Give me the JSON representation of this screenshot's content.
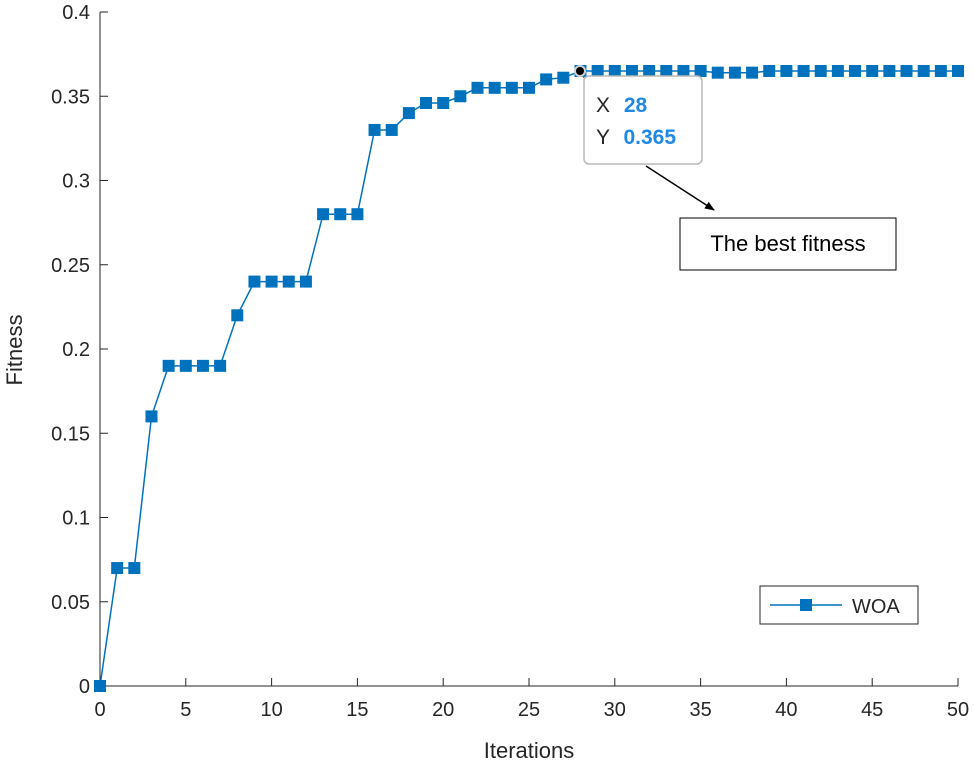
{
  "chart_data": {
    "type": "line",
    "title": "",
    "xlabel": "Iterations",
    "ylabel": "Fitness",
    "xlim": [
      0,
      50
    ],
    "ylim": [
      0,
      0.4
    ],
    "xticks": [
      0,
      5,
      10,
      15,
      20,
      25,
      30,
      35,
      40,
      45,
      50
    ],
    "xtick_labels": [
      "0",
      "5",
      "10",
      "15",
      "20",
      "25",
      "30",
      "35",
      "40",
      "45",
      "50"
    ],
    "yticks": [
      0,
      0.05,
      0.1,
      0.15,
      0.2,
      0.25,
      0.3,
      0.35,
      0.4
    ],
    "ytick_labels": [
      "0",
      "0.05",
      "0.1",
      "0.15",
      "0.2",
      "0.25",
      "0.3",
      "0.35",
      "0.4"
    ],
    "grid": false,
    "legend_position": "bottom-right",
    "series": [
      {
        "name": "WOA",
        "color": "#0072BD",
        "marker": "square",
        "x": [
          0,
          1,
          2,
          3,
          4,
          5,
          6,
          7,
          8,
          9,
          10,
          11,
          12,
          13,
          14,
          15,
          16,
          17,
          18,
          19,
          20,
          21,
          22,
          23,
          24,
          25,
          26,
          27,
          28,
          29,
          30,
          31,
          32,
          33,
          34,
          35,
          36,
          37,
          38,
          39,
          40,
          41,
          42,
          43,
          44,
          45,
          46,
          47,
          48,
          49,
          50
        ],
        "values": [
          0,
          0.07,
          0.07,
          0.16,
          0.19,
          0.19,
          0.19,
          0.19,
          0.22,
          0.24,
          0.24,
          0.24,
          0.24,
          0.28,
          0.28,
          0.28,
          0.33,
          0.33,
          0.34,
          0.346,
          0.346,
          0.35,
          0.355,
          0.355,
          0.355,
          0.355,
          0.36,
          0.361,
          0.365,
          0.365,
          0.365,
          0.365,
          0.365,
          0.365,
          0.365,
          0.365,
          0.364,
          0.364,
          0.364,
          0.365,
          0.365,
          0.365,
          0.365,
          0.365,
          0.365,
          0.365,
          0.365,
          0.365,
          0.365,
          0.365,
          0.365
        ]
      }
    ],
    "datatip": {
      "x_label": "X",
      "x_value": "28",
      "y_label": "Y",
      "y_value": "0.365",
      "point_x": 28,
      "point_y": 0.365,
      "value_color": "#1E88E5"
    },
    "annotation": {
      "text": "The best fitness"
    }
  }
}
